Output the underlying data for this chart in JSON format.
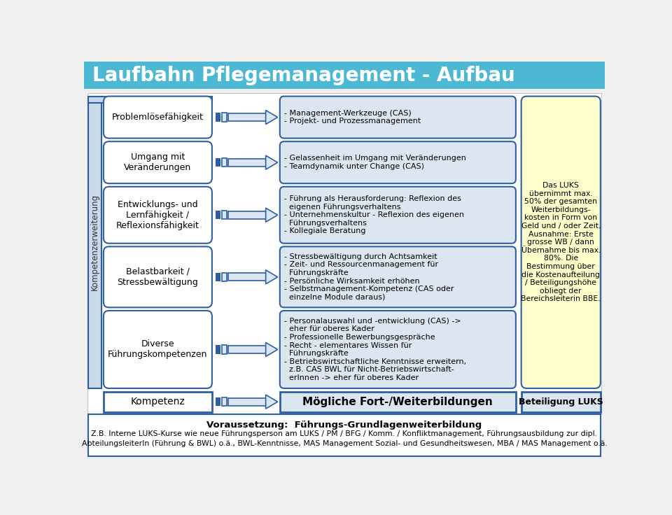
{
  "title": "Laufbahn Pflegemanagement - Aufbau",
  "title_bg": "#4db8d4",
  "title_color": "white",
  "title_fontsize": 20,
  "bg_color": "#f0f0f0",
  "left_boxes": [
    "Problemlösefähigkeit",
    "Umgang mit\nVeränderungen",
    "Entwicklungs- und\nLernfähigkeit /\nReflexionsfähigkeit",
    "Belastbarkeit /\nStressbewältigung",
    "Diverse\nFührungskompetenzen"
  ],
  "left_box_color": "white",
  "left_box_border": "#2e5fa3",
  "left_panel_color": "#c9d9ea",
  "left_panel_border": "#2e5fa3",
  "left_label": "Kompetenzerweiterung",
  "right_boxes": [
    "- Management-Werkzeuge (CAS)\n- Projekt- und Prozessmanagement",
    "- Gelassenheit im Umgang mit Veränderungen\n- Teamdynamik unter Change (CAS)",
    "- Führung als Herausforderung: Reflexion des\n  eigenen Führungsverhaltens\n- Unternehmenskultur - Reflexion des eigenen\n  Führungsverhaltens\n- Kollegiale Beratung",
    "- Stressbewältigung durch Achtsamkeit\n- Zeit- und Ressourcenmanagement für\n  Führungskräfte\n- Persönliche Wirksamkeit erhöhen\n- Selbstmanagement-Kompetenz (CAS oder\n  einzelne Module daraus)",
    "- Personalauswahl und -entwicklung (CAS) ->\n  eher für oberes Kader\n- Professionelle Bewerbungsgespräche\n- Recht - elementares Wissen für\n  Führungskräfte\n- Betriebswirtschaftliche Kenntnisse erweitern,\n  z.B. CAS BWL für Nicht-Betriebswirtschaft-\n  erInnen -> eher für oberes Kader"
  ],
  "right_box_color": "#dce6f1",
  "right_box_border": "#2e5fa3",
  "arrow_body_color": "#dce6f1",
  "arrow_border_color": "#2e5fa3",
  "luks_box_text": "Das LUKS\nübernimmt max.\n50% der gesamten\nWeiterbildungs-\nkosten in Form von\nGeld und / oder Zeit.\nAusnahme: Erste\ngrosse WB / dann\nÜbernahme bis max.\n80%. Die\nBestimmung über\ndie Kostenaufteilung\n/ Beteiligungshöhe\nobliegt der\nBereichsleiterin BBE.",
  "luks_box_color": "#ffffcc",
  "luks_box_border": "#2e5fa3",
  "bottom_left_text": "Kompetenz",
  "bottom_mid_text": "Mögliche Fort-/Weiterbildungen",
  "bottom_right_text": "Beteiligung LUKS",
  "footer_line1": "Voraussetzung:  Führungs-Grundlagenweiterbildung",
  "footer_line2": "Z.B. Interne LUKS-Kurse wie neue Führungsperson am LUKS / PM / BFG / Komm. / Konfliktmanagement, Führungsausbildung zur dipl.",
  "footer_line3": "AbteilungsleiterIn (Führung & BWL) o.ä., BWL-Kenntnisse, MAS Management Sozial- und Gesundheitswesen, MBA / MAS Management o.ä.",
  "content_bg": "white"
}
